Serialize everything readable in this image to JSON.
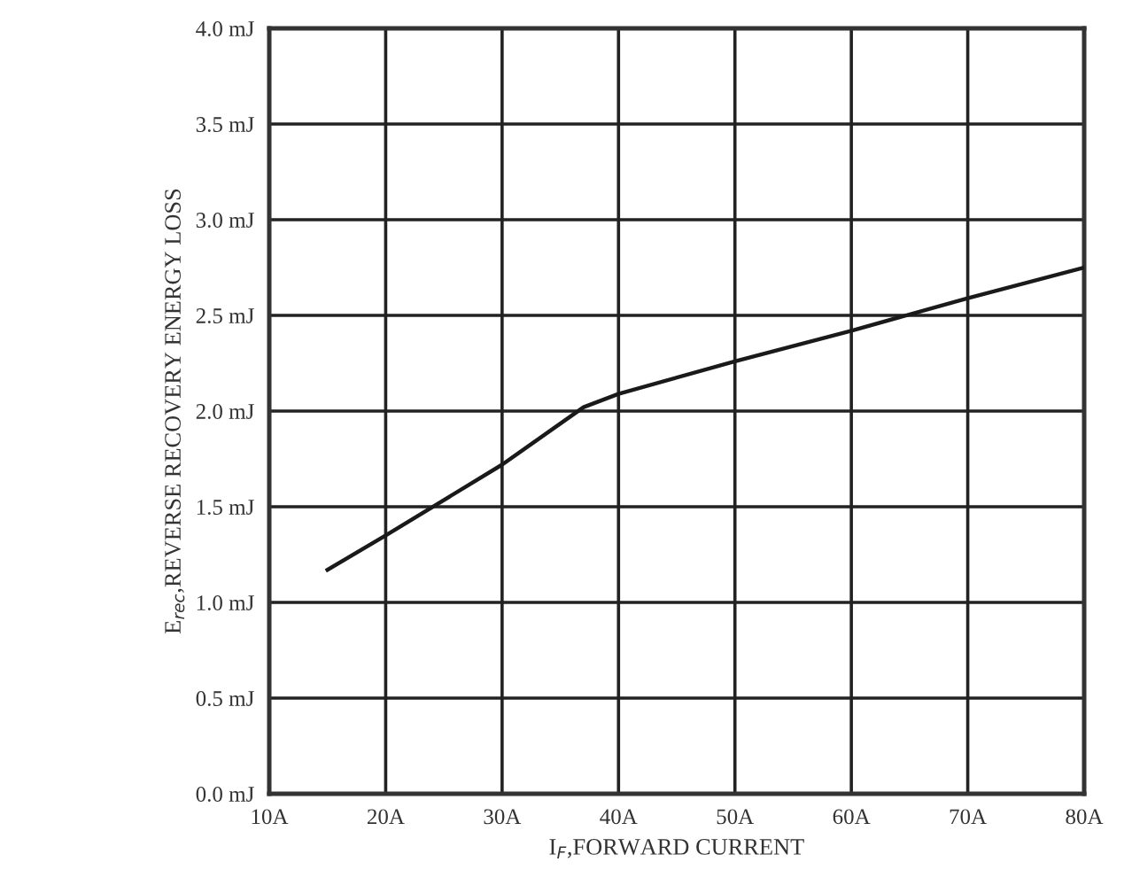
{
  "chart_data": {
    "type": "line",
    "xlabel": "I$_{F}$,FORWARD CURRENT",
    "ylabel": "E$_{rec}$,REVERSE RECOVERY ENERGY LOSS",
    "x": [
      15,
      20,
      30,
      37,
      40,
      50,
      60,
      70,
      80
    ],
    "series": [
      {
        "color": "#1a1a1a",
        "values": [
          1.17,
          1.35,
          1.72,
          2.02,
          2.09,
          2.26,
          2.42,
          2.59,
          2.75
        ]
      }
    ],
    "xlim": [
      10,
      80
    ],
    "ylim": [
      0,
      4.0
    ],
    "xticks": [
      {
        "value": 10,
        "label": "10A"
      },
      {
        "value": 20,
        "label": "20A"
      },
      {
        "value": 30,
        "label": "30A"
      },
      {
        "value": 40,
        "label": "40A"
      },
      {
        "value": 50,
        "label": "50A"
      },
      {
        "value": 60,
        "label": "60A"
      },
      {
        "value": 70,
        "label": "70A"
      },
      {
        "value": 80,
        "label": "80A"
      }
    ],
    "yticks": [
      {
        "value": 0,
        "label": "0.0 mJ"
      },
      {
        "value": 0.5,
        "label": "0.5 mJ"
      },
      {
        "value": 1.0,
        "label": "1.0 mJ"
      },
      {
        "value": 1.5,
        "label": "1.5 mJ"
      },
      {
        "value": 2.0,
        "label": "2.0 mJ"
      },
      {
        "value": 2.5,
        "label": "2.5 mJ"
      },
      {
        "value": 3.0,
        "label": "3.0 mJ"
      },
      {
        "value": 3.5,
        "label": "3.5 mJ"
      },
      {
        "value": 4.0,
        "label": "4.0 mJ"
      }
    ],
    "grid": true,
    "marker": "none",
    "line_style": "solid",
    "legend": false
  }
}
